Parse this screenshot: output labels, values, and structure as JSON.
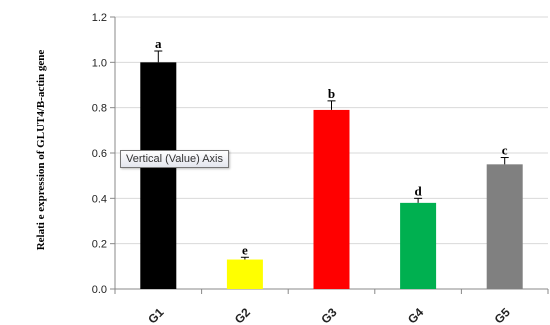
{
  "chart_data": {
    "type": "bar",
    "categories": [
      "G1",
      "G2",
      "G3",
      "G4",
      "G5"
    ],
    "values": [
      1.0,
      0.13,
      0.79,
      0.38,
      0.55
    ],
    "errors": [
      0.05,
      0.01,
      0.04,
      0.02,
      0.03
    ],
    "significance_letters": [
      "a",
      "e",
      "b",
      "d",
      "c"
    ],
    "bar_colors": [
      "#000000",
      "#ffff00",
      "#ff0000",
      "#00b050",
      "#808080"
    ],
    "ylabel": "Relati e expression of GLUT4/B-actin gene",
    "ylim": [
      0,
      1.2
    ],
    "yticks": [
      "0.0",
      "0.2",
      "0.4",
      "0.6",
      "0.8",
      "1.0",
      "1.2"
    ],
    "grid": true,
    "legend": "none"
  },
  "tooltip": {
    "text": "Vertical (Value) Axis"
  }
}
